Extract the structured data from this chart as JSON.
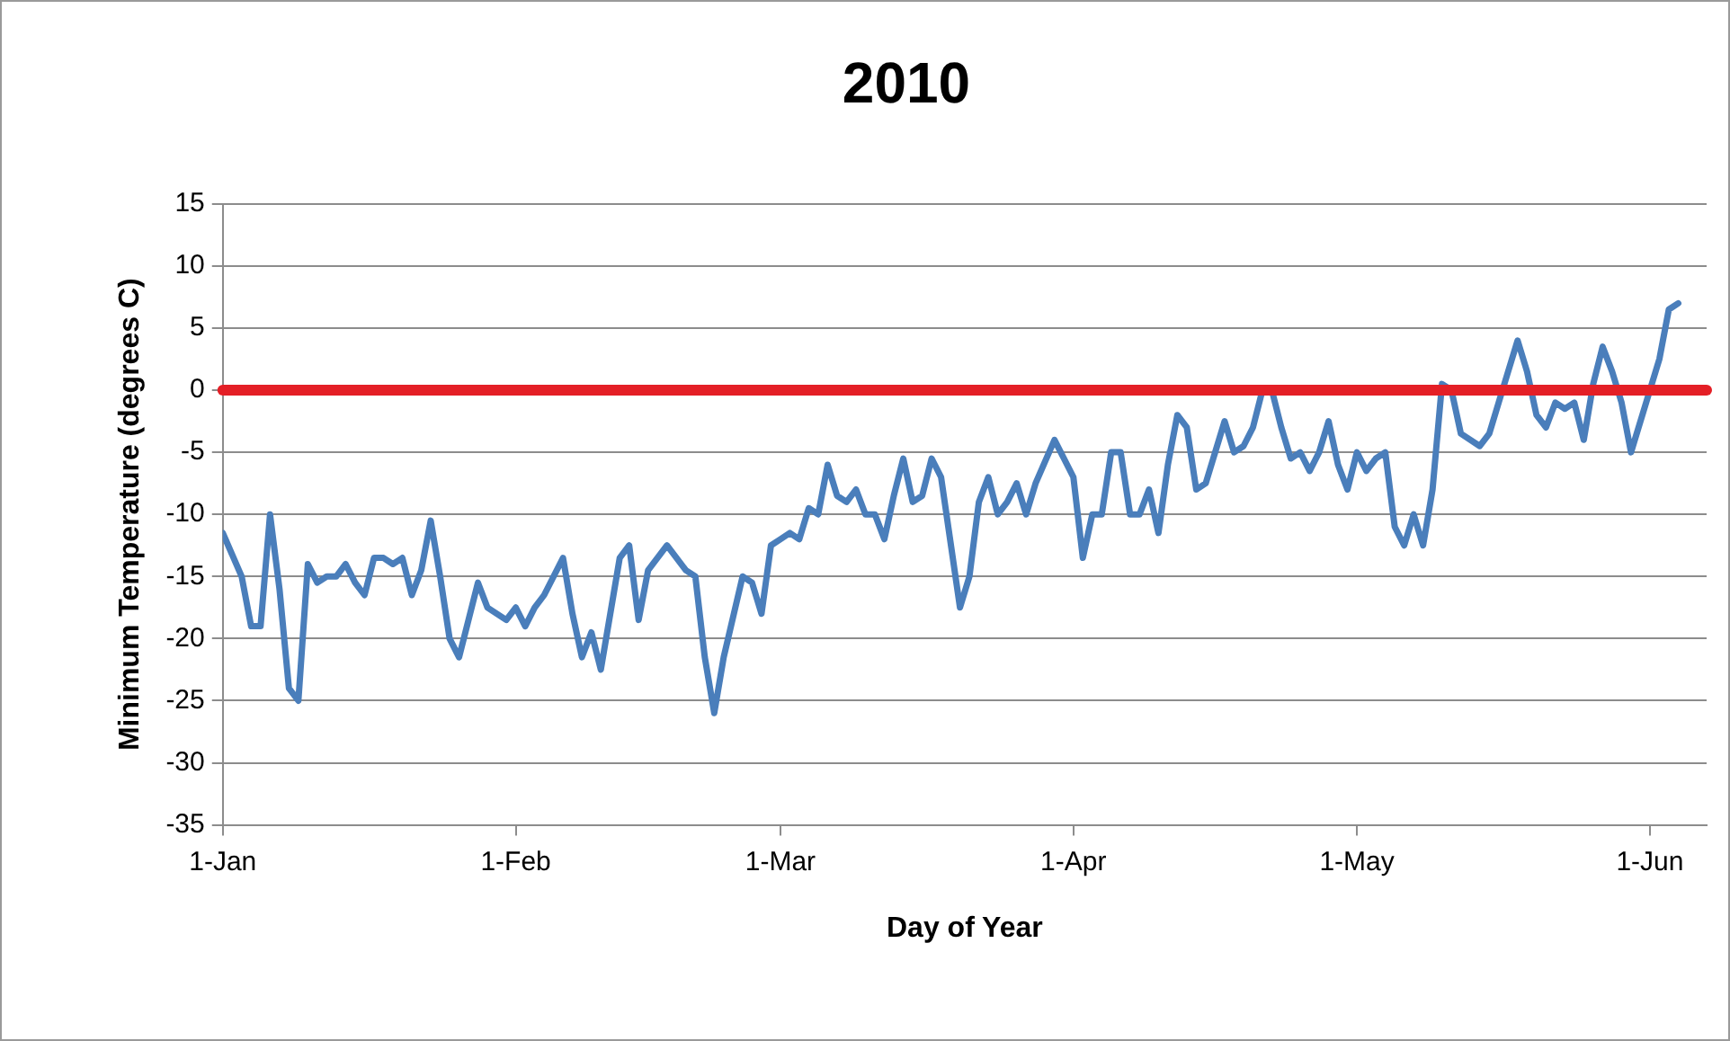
{
  "chart_data": {
    "type": "line",
    "title": "2010",
    "xlabel": "Day of Year",
    "ylabel": "Minimum Temperature (degrees C)",
    "x": [
      "2010-01-01",
      "2010-01-03",
      "2010-01-04",
      "2010-01-05",
      "2010-01-06",
      "2010-01-07",
      "2010-01-08",
      "2010-01-09",
      "2010-01-10",
      "2010-01-11",
      "2010-01-12",
      "2010-01-13",
      "2010-01-14",
      "2010-01-15",
      "2010-01-16",
      "2010-01-17",
      "2010-01-18",
      "2010-01-19",
      "2010-01-20",
      "2010-01-21",
      "2010-01-22",
      "2010-01-23",
      "2010-01-24",
      "2010-01-25",
      "2010-01-26",
      "2010-01-27",
      "2010-01-28",
      "2010-01-29",
      "2010-01-31",
      "2010-02-01",
      "2010-02-02",
      "2010-02-03",
      "2010-02-04",
      "2010-02-06",
      "2010-02-07",
      "2010-02-08",
      "2010-02-09",
      "2010-02-10",
      "2010-02-12",
      "2010-02-13",
      "2010-02-14",
      "2010-02-15",
      "2010-02-17",
      "2010-02-19",
      "2010-02-20",
      "2010-02-21",
      "2010-02-22",
      "2010-02-23",
      "2010-02-25",
      "2010-02-26",
      "2010-02-27",
      "2010-02-28",
      "2010-03-01",
      "2010-03-02",
      "2010-03-03",
      "2010-03-04",
      "2010-03-05",
      "2010-03-06",
      "2010-03-07",
      "2010-03-08",
      "2010-03-09",
      "2010-03-10",
      "2010-03-11",
      "2010-03-12",
      "2010-03-13",
      "2010-03-14",
      "2010-03-15",
      "2010-03-16",
      "2010-03-17",
      "2010-03-18",
      "2010-03-20",
      "2010-03-21",
      "2010-03-22",
      "2010-03-23",
      "2010-03-24",
      "2010-03-25",
      "2010-03-26",
      "2010-03-27",
      "2010-03-28",
      "2010-03-30",
      "2010-03-31",
      "2010-04-01",
      "2010-04-02",
      "2010-04-03",
      "2010-04-04",
      "2010-04-05",
      "2010-04-06",
      "2010-04-07",
      "2010-04-08",
      "2010-04-09",
      "2010-04-10",
      "2010-04-11",
      "2010-04-12",
      "2010-04-13",
      "2010-04-14",
      "2010-04-15",
      "2010-04-16",
      "2010-04-17",
      "2010-04-18",
      "2010-04-19",
      "2010-04-20",
      "2010-04-21",
      "2010-04-22",
      "2010-04-23",
      "2010-04-24",
      "2010-04-25",
      "2010-04-26",
      "2010-04-27",
      "2010-04-28",
      "2010-04-29",
      "2010-04-30",
      "2010-05-01",
      "2010-05-02",
      "2010-05-03",
      "2010-05-04",
      "2010-05-05",
      "2010-05-06",
      "2010-05-07",
      "2010-05-08",
      "2010-05-09",
      "2010-05-10",
      "2010-05-11",
      "2010-05-12",
      "2010-05-14",
      "2010-05-15",
      "2010-05-16",
      "2010-05-18",
      "2010-05-19",
      "2010-05-20",
      "2010-05-21",
      "2010-05-22",
      "2010-05-23",
      "2010-05-24",
      "2010-05-25",
      "2010-05-26",
      "2010-05-27",
      "2010-05-28",
      "2010-05-29",
      "2010-05-30",
      "2010-06-01",
      "2010-06-02",
      "2010-06-03",
      "2010-06-04"
    ],
    "series": [
      {
        "color": "#4a7ebb",
        "values": [
          -11.5,
          -15,
          -19,
          -19,
          -10,
          -16,
          -24,
          -25,
          -14,
          -15.5,
          -15,
          -15,
          -14,
          -15.5,
          -16.5,
          -13.5,
          -13.5,
          -14,
          -13.5,
          -16.5,
          -14.5,
          -10.5,
          -15,
          -20,
          -21.5,
          -18.5,
          -15.5,
          -17.5,
          -18.5,
          -17.5,
          -19,
          -17.5,
          -16.5,
          -13.5,
          -18,
          -21.5,
          -19.5,
          -22.5,
          -13.5,
          -12.5,
          -18.5,
          -14.5,
          -12.5,
          -14.5,
          -15,
          -21.5,
          -26,
          -21.5,
          -15,
          -15.5,
          -18,
          -12.5,
          -12,
          -11.5,
          -12,
          -9.5,
          -10,
          -6,
          -8.5,
          -9,
          -8,
          -10,
          -10,
          -12,
          -8.5,
          -5.5,
          -9,
          -8.5,
          -5.5,
          -7,
          -17.5,
          -15,
          -9,
          -7,
          -10,
          -9,
          -7.5,
          -10,
          -7.5,
          -4,
          -5.5,
          -7,
          -13.5,
          -10,
          -10,
          -5,
          -5,
          -10,
          -10,
          -8,
          -11.5,
          -6,
          -2,
          -3,
          -8,
          -7.5,
          -5,
          -2.5,
          -5,
          -4.5,
          -3,
          0,
          0,
          -3,
          -5.5,
          -5,
          -6.5,
          -5,
          -2.5,
          -6,
          -8,
          -5,
          -6.5,
          -5.5,
          -5,
          -11,
          -12.5,
          -10,
          -12.5,
          -8,
          0.5,
          0,
          -3.5,
          -4.5,
          -3.5,
          -1,
          4,
          1.5,
          -2,
          -3,
          -1,
          -1.5,
          -1,
          -4,
          0.5,
          3.5,
          1.5,
          -1,
          -5,
          0,
          2.5,
          6.5,
          7
        ]
      }
    ],
    "xlim": [
      "2010-01-01",
      "2010-06-07"
    ],
    "xticks": [
      {
        "value": "2010-01-01",
        "label": "1-Jan"
      },
      {
        "value": "2010-02-01",
        "label": "1-Feb"
      },
      {
        "value": "2010-03-01",
        "label": "1-Mar"
      },
      {
        "value": "2010-04-01",
        "label": "1-Apr"
      },
      {
        "value": "2010-05-01",
        "label": "1-May"
      },
      {
        "value": "2010-06-01",
        "label": "1-Jun"
      }
    ],
    "ylim": [
      -35,
      15
    ],
    "yticks": [
      -35,
      -30,
      -25,
      -20,
      -15,
      -10,
      -5,
      0,
      5,
      10,
      15
    ],
    "ref_lines": [
      {
        "axis": "y",
        "value": 0,
        "color": "#e41f26"
      }
    ],
    "grid": "y",
    "legend": false,
    "marker": "none",
    "line_style": "solid"
  }
}
